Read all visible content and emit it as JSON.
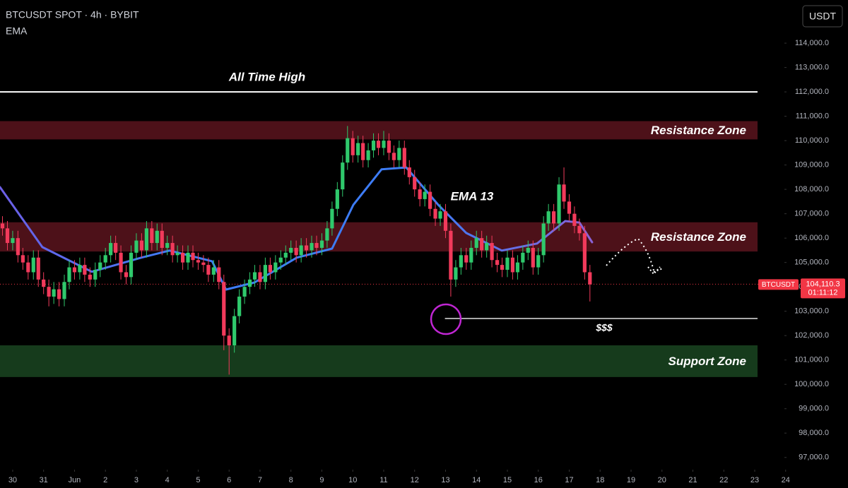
{
  "chart_data": {
    "type": "candlestick",
    "title": "BTCUSDT SPOT · 4h · BYBIT",
    "indicator_label": "EMA",
    "currency": "USDT",
    "up_color": "#2fc96c",
    "down_color": "#f23a5b",
    "xlim": [
      -0.41,
      24.96
    ],
    "ylim": [
      96500,
      115770
    ],
    "xticks": [
      {
        "value": 0,
        "label": "30"
      },
      {
        "value": 1,
        "label": "31"
      },
      {
        "value": 2,
        "label": "Jun"
      },
      {
        "value": 3,
        "label": "2"
      },
      {
        "value": 4,
        "label": "3"
      },
      {
        "value": 5,
        "label": "4"
      },
      {
        "value": 6,
        "label": "5"
      },
      {
        "value": 7,
        "label": "6"
      },
      {
        "value": 8,
        "label": "7"
      },
      {
        "value": 9,
        "label": "8"
      },
      {
        "value": 10,
        "label": "9"
      },
      {
        "value": 11,
        "label": "10"
      },
      {
        "value": 12,
        "label": "11"
      },
      {
        "value": 13,
        "label": "12"
      },
      {
        "value": 14,
        "label": "13"
      },
      {
        "value": 15,
        "label": "14"
      },
      {
        "value": 16,
        "label": "15"
      },
      {
        "value": 17,
        "label": "16"
      },
      {
        "value": 18,
        "label": "17"
      },
      {
        "value": 19,
        "label": "18"
      },
      {
        "value": 20,
        "label": "19"
      },
      {
        "value": 21,
        "label": "20"
      },
      {
        "value": 22,
        "label": "21"
      },
      {
        "value": 23,
        "label": "22"
      },
      {
        "value": 24,
        "label": "23"
      },
      {
        "value": 25,
        "label": "24"
      }
    ],
    "yticks": [
      {
        "value": 97000,
        "label": "97,000.0"
      },
      {
        "value": 98000,
        "label": "98,000.0"
      },
      {
        "value": 99000,
        "label": "99,000.0"
      },
      {
        "value": 100000,
        "label": "100,000.0"
      },
      {
        "value": 101000,
        "label": "101,000.0"
      },
      {
        "value": 102000,
        "label": "102,000.0"
      },
      {
        "value": 103000,
        "label": "103,000.0"
      },
      {
        "value": 104000,
        "label": "104,000.0"
      },
      {
        "value": 105000,
        "label": "105,000.0"
      },
      {
        "value": 106000,
        "label": "106,000.0"
      },
      {
        "value": 107000,
        "label": "107,000.0"
      },
      {
        "value": 108000,
        "label": "108,000.0"
      },
      {
        "value": 109000,
        "label": "109,000.0"
      },
      {
        "value": 110000,
        "label": "110,000.0"
      },
      {
        "value": 111000,
        "label": "111,000.0"
      },
      {
        "value": 112000,
        "label": "112,000.0"
      },
      {
        "value": 113000,
        "label": "113,000.0"
      },
      {
        "value": 114000,
        "label": "114,000.0"
      }
    ],
    "candles": {
      "x": [
        -0.33,
        -0.17,
        0,
        0.17,
        0.33,
        0.5,
        0.67,
        0.83,
        1,
        1.17,
        1.33,
        1.5,
        1.67,
        1.83,
        2,
        2.17,
        2.33,
        2.5,
        2.67,
        2.83,
        3,
        3.17,
        3.33,
        3.5,
        3.67,
        3.83,
        4,
        4.17,
        4.33,
        4.5,
        4.67,
        4.83,
        5,
        5.17,
        5.33,
        5.5,
        5.67,
        5.83,
        6,
        6.17,
        6.33,
        6.5,
        6.67,
        6.83,
        7,
        7.17,
        7.33,
        7.5,
        7.67,
        7.83,
        8,
        8.17,
        8.33,
        8.5,
        8.67,
        8.83,
        9,
        9.17,
        9.33,
        9.5,
        9.67,
        9.83,
        10,
        10.17,
        10.33,
        10.5,
        10.67,
        10.83,
        11,
        11.17,
        11.33,
        11.5,
        11.67,
        11.83,
        12,
        12.17,
        12.33,
        12.5,
        12.67,
        12.83,
        13,
        13.17,
        13.33,
        13.5,
        13.67,
        13.83,
        14,
        14.17,
        14.33,
        14.5,
        14.67,
        14.83,
        15,
        15.17,
        15.33,
        15.5,
        15.67,
        15.83,
        16,
        16.17,
        16.33,
        16.5,
        16.67,
        16.83,
        17,
        17.17,
        17.33,
        17.5,
        17.67,
        17.83,
        18,
        18.17,
        18.33,
        18.5,
        18.67
      ],
      "open": [
        106600,
        106400,
        105800,
        106000,
        105300,
        105000,
        104600,
        105200,
        104300,
        104000,
        103600,
        103900,
        103500,
        104200,
        104800,
        104600,
        104900,
        104500,
        104300,
        104700,
        105000,
        105300,
        105800,
        105400,
        104600,
        104400,
        105400,
        105900,
        105500,
        106400,
        105800,
        106300,
        105600,
        105800,
        105300,
        105400,
        105000,
        105400,
        105100,
        105000,
        104900,
        104500,
        104800,
        104200,
        102000,
        101600,
        102800,
        103600,
        104000,
        104300,
        104600,
        104200,
        104900,
        104600,
        105000,
        105200,
        105400,
        105600,
        105300,
        105700,
        105500,
        105800,
        105600,
        105900,
        106400,
        107200,
        108000,
        109100,
        110100,
        109400,
        109900,
        109200,
        109600,
        110000,
        109700,
        110000,
        109500,
        109200,
        109700,
        108900,
        108500,
        108000,
        107600,
        107900,
        107200,
        106800,
        107100,
        106300,
        104300,
        104800,
        105300,
        105000,
        105600,
        106000,
        105500,
        105800,
        105100,
        104900,
        104700,
        105200,
        104600,
        105000,
        105400,
        105600,
        104800,
        105300,
        106600,
        107100,
        106600,
        108200,
        107500,
        107000,
        106500,
        106200,
        104600
      ],
      "high": [
        106900,
        106700,
        106300,
        106300,
        105600,
        105300,
        105500,
        105500,
        104600,
        104300,
        104200,
        104200,
        104500,
        105100,
        105100,
        105200,
        105200,
        104800,
        105000,
        105300,
        105600,
        106100,
        106100,
        105700,
        104900,
        105700,
        106200,
        106200,
        106700,
        106700,
        106600,
        106600,
        106100,
        106100,
        105700,
        105700,
        105700,
        105700,
        105400,
        105300,
        105200,
        105100,
        105100,
        104500,
        102300,
        103100,
        103900,
        104300,
        104600,
        104900,
        104900,
        105200,
        105200,
        105300,
        105500,
        105700,
        105900,
        105900,
        106000,
        106000,
        106100,
        106100,
        106200,
        106700,
        107500,
        108300,
        109400,
        110600,
        110400,
        110200,
        110200,
        109900,
        110300,
        110300,
        110400,
        110300,
        109800,
        110000,
        110000,
        109200,
        108800,
        108300,
        108200,
        108200,
        107500,
        107400,
        107400,
        106600,
        105100,
        105600,
        105600,
        105900,
        106300,
        106300,
        106100,
        106100,
        105400,
        105200,
        105500,
        105500,
        105300,
        105700,
        105900,
        105900,
        105600,
        106900,
        107400,
        107400,
        108500,
        108900,
        107800,
        107300,
        106800,
        106500,
        104900
      ],
      "low": [
        106100,
        105500,
        105500,
        105000,
        104700,
        104300,
        104300,
        104000,
        103700,
        103200,
        103300,
        103200,
        103200,
        103900,
        104300,
        104300,
        104200,
        104000,
        104000,
        104400,
        104700,
        105000,
        105100,
        104300,
        104100,
        104100,
        105100,
        105200,
        105200,
        105500,
        105500,
        105300,
        105300,
        105000,
        105000,
        104700,
        104700,
        104800,
        104700,
        104600,
        104200,
        104200,
        103900,
        101400,
        100400,
        101300,
        102500,
        103300,
        103700,
        104000,
        103900,
        103900,
        104300,
        104300,
        104700,
        104900,
        105100,
        105000,
        105000,
        105200,
        105200,
        105300,
        105300,
        105600,
        106100,
        106900,
        107700,
        108800,
        109100,
        109100,
        108900,
        108900,
        109300,
        109400,
        109400,
        109200,
        108900,
        108900,
        108600,
        108200,
        107700,
        107300,
        107300,
        106900,
        106500,
        106500,
        106000,
        103600,
        104000,
        104500,
        104700,
        104700,
        105300,
        105200,
        105200,
        104800,
        104600,
        104400,
        104400,
        104300,
        104300,
        104700,
        105100,
        104500,
        104500,
        105000,
        106300,
        106300,
        106300,
        107200,
        106700,
        106200,
        105900,
        104300,
        103400
      ],
      "close": [
        106400,
        105800,
        106000,
        105300,
        105000,
        104600,
        105200,
        104300,
        104000,
        103600,
        103900,
        103500,
        104200,
        104800,
        104600,
        104900,
        104500,
        104300,
        104700,
        105000,
        105300,
        105800,
        105400,
        104600,
        104400,
        105400,
        105900,
        105500,
        106400,
        105800,
        106300,
        105600,
        105800,
        105300,
        105400,
        105000,
        105400,
        105100,
        105000,
        104900,
        104500,
        104800,
        104200,
        102000,
        101600,
        102800,
        103600,
        104000,
        104300,
        104600,
        104200,
        104900,
        104600,
        105000,
        105200,
        105400,
        105600,
        105300,
        105700,
        105500,
        105800,
        105600,
        105900,
        106400,
        107200,
        108000,
        109100,
        110100,
        109400,
        109900,
        109200,
        109600,
        110000,
        109700,
        110000,
        109500,
        109200,
        109700,
        108900,
        108500,
        108000,
        107600,
        107900,
        107200,
        106800,
        107100,
        106300,
        104300,
        104800,
        105300,
        105000,
        105600,
        106000,
        105500,
        105800,
        105100,
        104900,
        104700,
        105200,
        104600,
        105000,
        105400,
        105600,
        104800,
        105300,
        106600,
        107100,
        106600,
        108200,
        107500,
        107000,
        106500,
        106200,
        104600,
        104100
      ]
    },
    "ema": {
      "label": "EMA 13",
      "x": [
        -0.41,
        0.96,
        2.56,
        4.16,
        5.07,
        6.45,
        6.9,
        7.82,
        9.19,
        10.33,
        11.02,
        11.93,
        12.73,
        13.76,
        14.67,
        15.82,
        16.96,
        17.87,
        18.33,
        18.74
      ],
      "values": [
        108090,
        105630,
        104620,
        105200,
        105490,
        105050,
        103890,
        104180,
        105200,
        105570,
        107370,
        108820,
        108900,
        107370,
        106210,
        105490,
        105780,
        106700,
        106640,
        105830
      ]
    },
    "zones": [
      {
        "label": "Resistance Zone",
        "range": [
          110050,
          110800
        ],
        "color": "#4d1119"
      },
      {
        "label": "Resistance Zone",
        "range": [
          105450,
          106650
        ],
        "color": "#4d1119"
      },
      {
        "label": "Support Zone",
        "range": [
          100300,
          101600
        ],
        "color": "#163b1c"
      }
    ],
    "ath": {
      "label": "All Time High",
      "value": 112000,
      "color": "#ffffff"
    },
    "liquidity": {
      "label": "$$$",
      "value": 102700,
      "start": 13.98,
      "color": "#a8a8a8"
    },
    "last_price": {
      "name": "BTCUSDT",
      "value": 104110.3,
      "label": "104,110.3",
      "countdown": "01:11:12",
      "color": "#f23645"
    }
  }
}
